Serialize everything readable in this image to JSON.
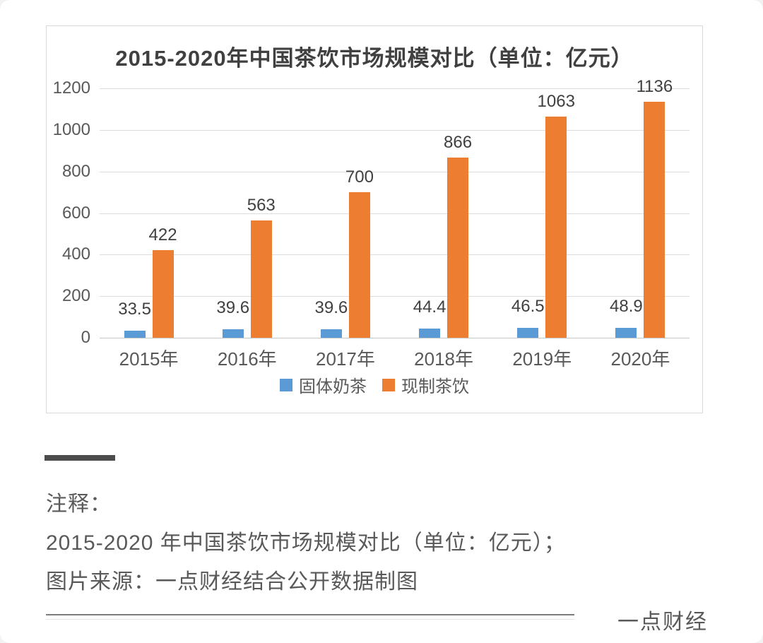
{
  "chart_data": {
    "type": "bar",
    "title": "2015-2020年中国茶饮市场规模对比（单位：亿元）",
    "categories": [
      "2015年",
      "2016年",
      "2017年",
      "2018年",
      "2019年",
      "2020年"
    ],
    "series": [
      {
        "name": "固体奶茶",
        "color": "#5B9BD5",
        "values": [
          33.5,
          39.6,
          39.6,
          44.4,
          46.5,
          48.9
        ]
      },
      {
        "name": "现制茶饮",
        "color": "#ED7D31",
        "values": [
          422,
          563,
          700,
          866,
          1063,
          1136
        ]
      }
    ],
    "xlabel": "",
    "ylabel": "",
    "ylim": [
      0,
      1200
    ],
    "ytick_step": 200,
    "grid": true,
    "legend_position": "bottom"
  },
  "notes": {
    "label": "注释：",
    "line1": "2015-2020 年中国茶饮市场规模对比（单位：亿元）；",
    "line2": "图片来源：一点财经结合公开数据制图"
  },
  "footer": {
    "brand": "一点财经"
  },
  "colors": {
    "series_blue": "#5B9BD5",
    "series_orange": "#ED7D31",
    "gridline": "#DCDCDC",
    "title_text": "#404040",
    "axis_text": "#595959",
    "note_text": "#595959",
    "divider_dark": "#4D4D4D"
  }
}
